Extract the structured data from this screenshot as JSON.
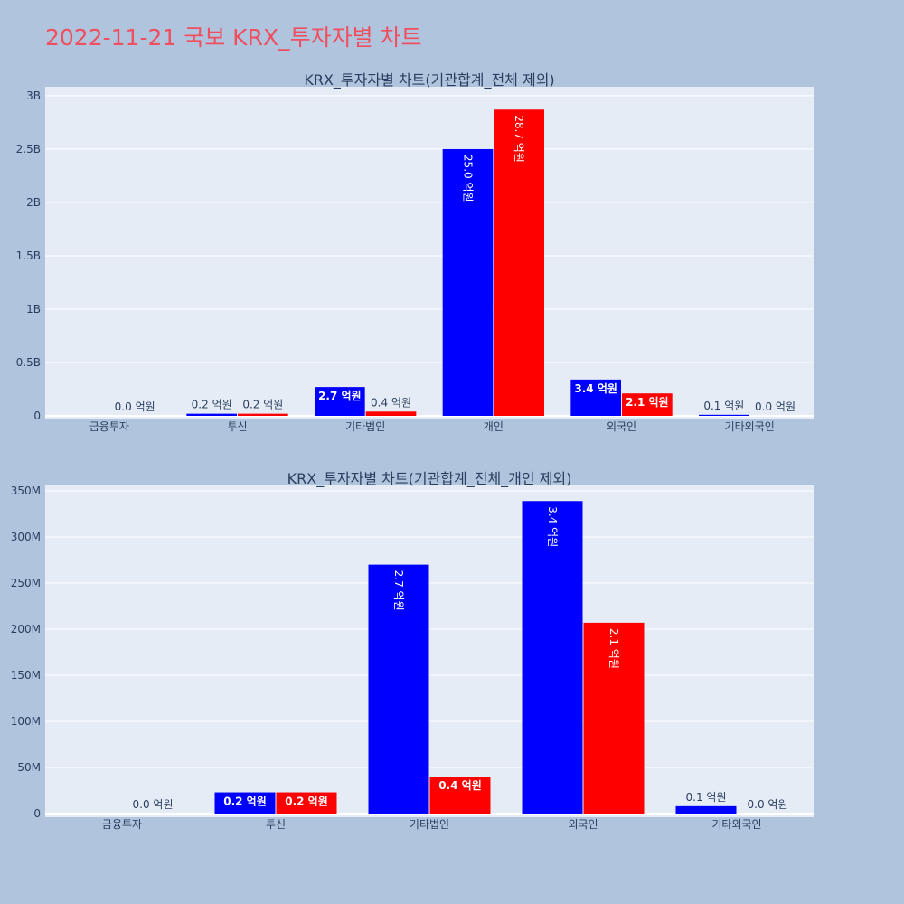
{
  "page_title": "2022-11-21 국보 KRX_투자자별 차트",
  "colors": {
    "buy": "#0000ff",
    "sell": "#ff0000",
    "plot_bg": "#e5ecf6",
    "page_bg": "#b0c4de",
    "title": "#ef4f5f"
  },
  "chart_data": [
    {
      "type": "bar",
      "title": "KRX_투자자별 차트(기관합계_전체 제외)",
      "categories": [
        "금융투자",
        "투신",
        "기타법인",
        "개인",
        "외국인",
        "기타외국인"
      ],
      "series": [
        {
          "color": "#0000ff",
          "values": [
            0,
            20000000,
            270000000,
            2500000000,
            340000000,
            10000000
          ],
          "labels": [
            "",
            "0.2 억원",
            "2.7 억원",
            "25.0 억원",
            "3.4 억원",
            "0.1 억원"
          ]
        },
        {
          "color": "#ff0000",
          "values": [
            0,
            20000000,
            40000000,
            2870000000,
            210000000,
            0
          ],
          "labels": [
            "0.0 억원",
            "0.2 억원",
            "0.4 억원",
            "28.7 억원",
            "2.1 억원",
            "0.0 억원"
          ]
        }
      ],
      "ylim": [
        0,
        3050000000
      ],
      "yticks": [
        0,
        500000000,
        1000000000,
        1500000000,
        2000000000,
        2500000000,
        3000000000
      ],
      "ytick_labels": [
        "0",
        "0.5B",
        "1B",
        "1.5B",
        "2B",
        "2.5B",
        "3B"
      ],
      "grid": true
    },
    {
      "type": "bar",
      "title": "KRX_투자자별 차트(기관합계_전체_개인 제외)",
      "categories": [
        "금융투자",
        "투신",
        "기타법인",
        "외국인",
        "기타외국인"
      ],
      "series": [
        {
          "color": "#0000ff",
          "values": [
            0,
            23000000,
            270000000,
            339000000,
            8000000
          ],
          "labels": [
            "",
            "0.2 억원",
            "2.7 억원",
            "3.4 억원",
            "0.1 억원"
          ]
        },
        {
          "color": "#ff0000",
          "values": [
            0,
            23000000,
            40000000,
            207000000,
            0
          ],
          "labels": [
            "0.0 억원",
            "0.2 억원",
            "0.4 억원",
            "2.1 억원",
            "0.0 억원"
          ]
        }
      ],
      "ylim": [
        0,
        352000000
      ],
      "yticks": [
        0,
        50000000,
        100000000,
        150000000,
        200000000,
        250000000,
        300000000,
        350000000
      ],
      "ytick_labels": [
        "0",
        "50M",
        "100M",
        "150M",
        "200M",
        "250M",
        "300M",
        "350M"
      ],
      "grid": true
    }
  ]
}
